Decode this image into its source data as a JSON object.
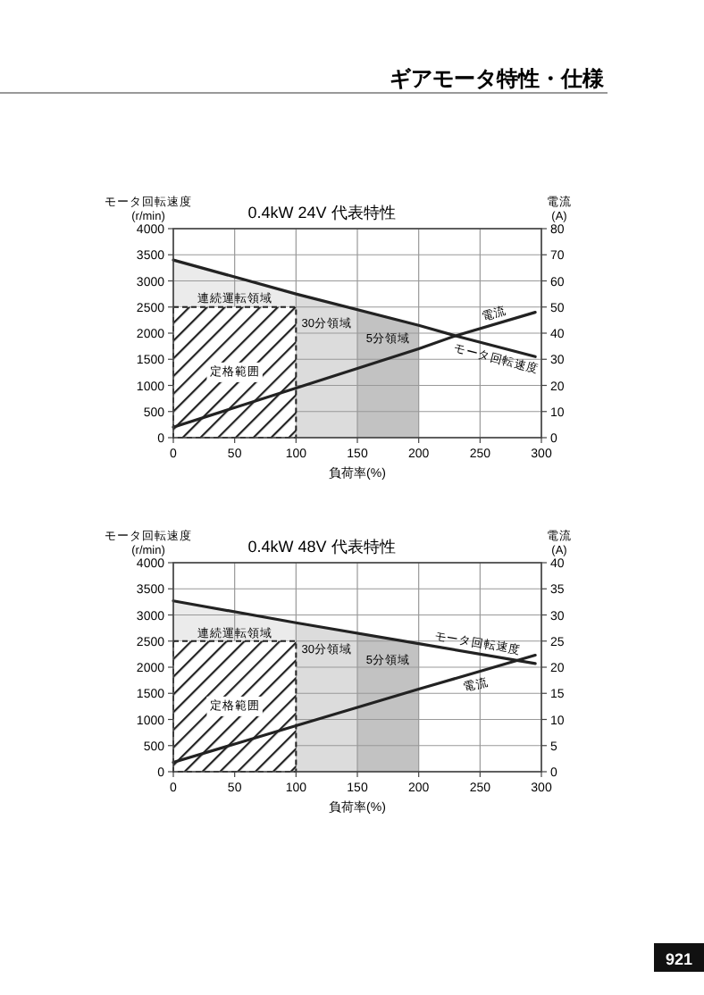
{
  "chart_data": [
    {
      "type": "line",
      "title": "0.4kW 24V 代表特性",
      "xlabel": "負荷率(%)",
      "ylabel": "モータ回転速度\n(r/min)",
      "y2label": "電流\n(A)",
      "annotations": [
        "ギアモータ特性・仕様"
      ],
      "xlim": [
        0,
        300
      ],
      "xticks": [
        0,
        50,
        100,
        150,
        200,
        250,
        300
      ],
      "ylim": [
        0,
        4000
      ],
      "yticks": [
        0,
        500,
        1000,
        1500,
        2000,
        2500,
        3000,
        3500,
        4000
      ],
      "y2lim": [
        0,
        80
      ],
      "y2ticks": [
        0,
        10,
        20,
        30,
        40,
        50,
        60,
        70,
        80
      ],
      "grid": true,
      "bands": [
        {
          "axis": "x",
          "from": 0,
          "to": 100,
          "label": "連続運転領域",
          "color": "#ebebeb"
        },
        {
          "axis": "x",
          "from": 100,
          "to": 150,
          "label": "30分領域",
          "color": "#dcdcdc"
        },
        {
          "axis": "x",
          "from": 150,
          "to": 200,
          "label": "5分領域",
          "color": "#c2c2c2"
        }
      ],
      "series": [
        {
          "name": "定格範囲",
          "type": "area",
          "color": "#222222",
          "x": [
            0,
            100
          ],
          "values": [
            2500,
            2500
          ]
        },
        {
          "name": "モータ回転速度",
          "color": "#222222",
          "x": [
            0,
            100,
            200,
            230,
            295
          ],
          "values": [
            3400,
            2750,
            2150,
            1950,
            1550
          ]
        },
        {
          "name": "電流",
          "color": "#222222",
          "axis": "y2",
          "x": [
            0,
            100,
            200,
            230,
            295
          ],
          "values": [
            4,
            19,
            34,
            39,
            48
          ]
        }
      ]
    },
    {
      "type": "line",
      "title": "0.4kW 48V 代表特性",
      "xlabel": "負荷率(%)",
      "ylabel": "モータ回転速度\n(r/min)",
      "y2label": "電流\n(A)",
      "annotations": [
        "921"
      ],
      "xlim": [
        0,
        300
      ],
      "xticks": [
        0,
        50,
        100,
        150,
        200,
        250,
        300
      ],
      "ylim": [
        0,
        4000
      ],
      "yticks": [
        0,
        500,
        1000,
        1500,
        2000,
        2500,
        3000,
        3500,
        4000
      ],
      "y2lim": [
        0,
        40
      ],
      "y2ticks": [
        0,
        5,
        10,
        15,
        20,
        25,
        30,
        35,
        40
      ],
      "grid": true,
      "bands": [
        {
          "axis": "x",
          "from": 0,
          "to": 100,
          "label": "連続運転領域",
          "color": "#ebebeb"
        },
        {
          "axis": "x",
          "from": 100,
          "to": 150,
          "label": "30分領域",
          "color": "#dcdcdc"
        },
        {
          "axis": "x",
          "from": 150,
          "to": 200,
          "label": "5分領域",
          "color": "#c2c2c2"
        }
      ],
      "series": [
        {
          "name": "定格範囲",
          "type": "area",
          "color": "#222222",
          "x": [
            0,
            100
          ],
          "values": [
            2500,
            2500
          ]
        },
        {
          "name": "モータ回転速度",
          "color": "#222222",
          "x": [
            0,
            100,
            200,
            295
          ],
          "values": [
            3270,
            2850,
            2450,
            2070
          ]
        },
        {
          "name": "電流",
          "color": "#222222",
          "axis": "y2",
          "x": [
            0,
            100,
            200,
            295
          ],
          "values": [
            1.8,
            8.8,
            15.8,
            22.3
          ]
        }
      ]
    }
  ]
}
